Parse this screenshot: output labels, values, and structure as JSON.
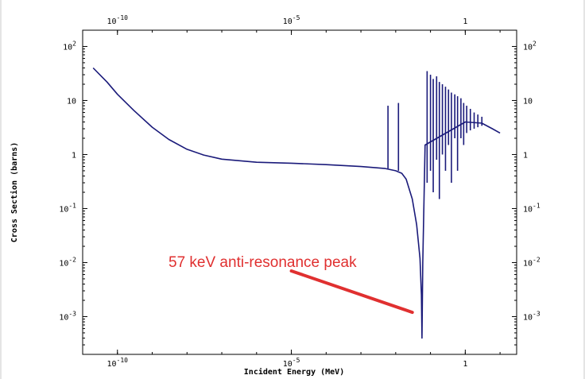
{
  "chart_data": {
    "type": "line",
    "title": "",
    "xlabel": "Incident Energy (MeV)",
    "ylabel": "Cross Section (barns)",
    "x_scale": "log",
    "y_scale": "log",
    "xlim": [
      1e-11,
      30
    ],
    "ylim": [
      0.0002,
      200
    ],
    "x_ticks": [
      {
        "value": 1e-10,
        "base": "10",
        "exp": "-10"
      },
      {
        "value": 1e-05,
        "base": "10",
        "exp": "-5"
      },
      {
        "value": 1,
        "base": "1",
        "exp": ""
      }
    ],
    "y_ticks": [
      {
        "value": 100,
        "base": "10",
        "exp": "2"
      },
      {
        "value": 10,
        "base": "10",
        "exp": ""
      },
      {
        "value": 1,
        "base": "1",
        "exp": ""
      },
      {
        "value": 0.1,
        "base": "10",
        "exp": "-1"
      },
      {
        "value": 0.01,
        "base": "10",
        "exp": "-2"
      },
      {
        "value": 0.001,
        "base": "10",
        "exp": "-3"
      }
    ],
    "grid": false,
    "line_color": "#1a1a7a",
    "series": [
      {
        "points": [
          [
            2e-11,
            40
          ],
          [
            5e-11,
            22
          ],
          [
            1e-10,
            13
          ],
          [
            3e-10,
            6.5
          ],
          [
            1e-09,
            3.2
          ],
          [
            3e-09,
            1.9
          ],
          [
            1e-08,
            1.25
          ],
          [
            3e-08,
            0.98
          ],
          [
            1e-07,
            0.82
          ],
          [
            1e-06,
            0.72
          ],
          [
            1e-05,
            0.69
          ],
          [
            0.0001,
            0.65
          ],
          [
            0.001,
            0.6
          ],
          [
            0.005,
            0.55
          ],
          [
            0.01,
            0.5
          ],
          [
            0.015,
            0.45
          ],
          [
            0.02,
            0.35
          ],
          [
            0.03,
            0.15
          ],
          [
            0.04,
            0.05
          ],
          [
            0.05,
            0.012
          ],
          [
            0.055,
            0.0025
          ],
          [
            0.057,
            0.0004
          ],
          [
            0.06,
            0.01
          ],
          [
            0.07,
            1.5
          ],
          [
            1,
            4
          ],
          [
            3,
            3.8
          ],
          [
            6,
            3
          ],
          [
            10,
            2.5
          ]
        ],
        "spikes": [
          {
            "x": 0.006,
            "ymin": 0.55,
            "ymax": 8
          },
          {
            "x": 0.012,
            "ymin": 0.5,
            "ymax": 9
          },
          {
            "x": 0.08,
            "ymin": 0.3,
            "ymax": 35
          },
          {
            "x": 0.1,
            "ymin": 0.5,
            "ymax": 30
          },
          {
            "x": 0.12,
            "ymin": 0.2,
            "ymax": 25
          },
          {
            "x": 0.15,
            "ymin": 0.8,
            "ymax": 28
          },
          {
            "x": 0.18,
            "ymin": 0.15,
            "ymax": 22
          },
          {
            "x": 0.22,
            "ymin": 1,
            "ymax": 20
          },
          {
            "x": 0.27,
            "ymin": 0.5,
            "ymax": 18
          },
          {
            "x": 0.33,
            "ymin": 1.5,
            "ymax": 16
          },
          {
            "x": 0.4,
            "ymin": 0.3,
            "ymax": 14
          },
          {
            "x": 0.5,
            "ymin": 2,
            "ymax": 13
          },
          {
            "x": 0.6,
            "ymin": 0.5,
            "ymax": 12
          },
          {
            "x": 0.75,
            "ymin": 2,
            "ymax": 11
          },
          {
            "x": 0.9,
            "ymin": 1.5,
            "ymax": 9
          },
          {
            "x": 1.1,
            "ymin": 2.5,
            "ymax": 8
          },
          {
            "x": 1.4,
            "ymin": 2.8,
            "ymax": 7
          },
          {
            "x": 1.8,
            "ymin": 3,
            "ymax": 6
          },
          {
            "x": 2.3,
            "ymin": 3.2,
            "ymax": 5.5
          },
          {
            "x": 3,
            "ymin": 3.4,
            "ymax": 5
          }
        ]
      }
    ],
    "annotation": {
      "text": "57 keV anti-resonance peak",
      "color": "#e03030",
      "arrow_from": [
        1e-05,
        0.007
      ],
      "arrow_to": [
        0.03,
        0.0012
      ]
    }
  }
}
